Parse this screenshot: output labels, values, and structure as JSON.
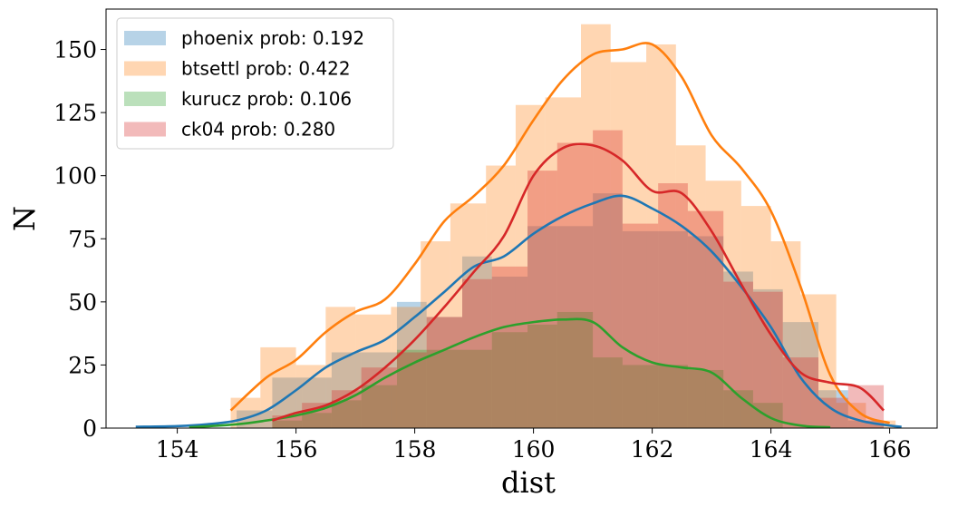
{
  "chart_data": {
    "type": "histogram+kde",
    "xlabel": "dist",
    "ylabel": "N",
    "xlim": [
      152.8,
      166.8
    ],
    "ylim": [
      0,
      166
    ],
    "xticks": [
      154,
      156,
      158,
      160,
      162,
      164,
      166
    ],
    "yticks": [
      0,
      25,
      50,
      75,
      100,
      125,
      150
    ],
    "legend_position": "top-left",
    "grid": false,
    "series": [
      {
        "name": "phoenix prob: 0.192",
        "color": "#1f77b4",
        "bins": [
          [
            155.0,
            155.6,
            7
          ],
          [
            155.6,
            156.1,
            20
          ],
          [
            156.1,
            156.6,
            20
          ],
          [
            156.6,
            157.1,
            30
          ],
          [
            157.1,
            157.7,
            30
          ],
          [
            157.7,
            158.2,
            50
          ],
          [
            158.2,
            158.8,
            44
          ],
          [
            158.8,
            159.3,
            68
          ],
          [
            159.3,
            159.9,
            60
          ],
          [
            159.9,
            160.4,
            80
          ],
          [
            160.4,
            161.0,
            80
          ],
          [
            161.0,
            161.5,
            93
          ],
          [
            161.5,
            162.1,
            78
          ],
          [
            162.1,
            162.6,
            78
          ],
          [
            162.6,
            163.2,
            76
          ],
          [
            163.2,
            163.7,
            62
          ],
          [
            163.7,
            164.2,
            55
          ],
          [
            164.2,
            164.8,
            42
          ],
          [
            164.8,
            165.3,
            15
          ],
          [
            165.3,
            165.9,
            3
          ]
        ],
        "kde_x": [
          153.3,
          154.0,
          154.5,
          155.0,
          155.5,
          156.0,
          156.5,
          157.0,
          157.5,
          158.0,
          158.5,
          159.0,
          159.5,
          160.0,
          160.5,
          161.0,
          161.5,
          162.0,
          162.5,
          163.0,
          163.5,
          164.0,
          164.5,
          165.0,
          165.5,
          166.0,
          166.2
        ],
        "kde_y": [
          0.5,
          0.8,
          1.5,
          3,
          7,
          15,
          24,
          30,
          35,
          44,
          54,
          64,
          68,
          77,
          84,
          89,
          92,
          87,
          80,
          70,
          56,
          40,
          20,
          8,
          3,
          1,
          0.5
        ]
      },
      {
        "name": "btsettl prob: 0.422",
        "color": "#ff7f0e",
        "bins": [
          [
            154.9,
            155.4,
            12
          ],
          [
            155.4,
            156.0,
            32
          ],
          [
            156.0,
            156.5,
            25
          ],
          [
            156.5,
            157.0,
            48
          ],
          [
            157.0,
            157.6,
            45
          ],
          [
            157.6,
            158.1,
            48
          ],
          [
            158.1,
            158.6,
            74
          ],
          [
            158.6,
            159.2,
            89
          ],
          [
            159.2,
            159.7,
            104
          ],
          [
            159.7,
            160.2,
            128
          ],
          [
            160.2,
            160.8,
            131
          ],
          [
            160.8,
            161.3,
            160
          ],
          [
            161.3,
            161.9,
            145
          ],
          [
            161.9,
            162.4,
            152
          ],
          [
            162.4,
            162.9,
            112
          ],
          [
            162.9,
            163.5,
            98
          ],
          [
            163.5,
            164.0,
            88
          ],
          [
            164.0,
            164.5,
            74
          ],
          [
            164.5,
            165.1,
            53
          ],
          [
            165.1,
            165.6,
            10
          ],
          [
            165.6,
            166.1,
            3
          ]
        ],
        "kde_x": [
          154.9,
          155.5,
          156.0,
          156.5,
          157.0,
          157.5,
          158.0,
          158.5,
          159.0,
          159.5,
          160.0,
          160.5,
          161.0,
          161.5,
          162.0,
          162.5,
          163.0,
          163.5,
          164.0,
          164.5,
          165.0,
          165.5,
          166.0
        ],
        "kde_y": [
          7,
          20,
          27,
          38,
          46,
          51,
          65,
          82,
          92,
          104,
          122,
          138,
          148,
          150,
          152,
          139,
          116,
          103,
          86,
          56,
          21,
          6,
          2
        ]
      },
      {
        "name": "kurucz prob: 0.106",
        "color": "#2ca02c",
        "bins": [
          [
            155.6,
            156.1,
            3
          ],
          [
            156.1,
            156.6,
            6
          ],
          [
            156.6,
            157.1,
            11
          ],
          [
            157.1,
            157.7,
            17
          ],
          [
            157.7,
            158.2,
            31
          ],
          [
            158.2,
            158.8,
            31
          ],
          [
            158.8,
            159.3,
            31
          ],
          [
            159.3,
            159.9,
            38
          ],
          [
            159.9,
            160.4,
            41
          ],
          [
            160.4,
            161.0,
            46
          ],
          [
            161.0,
            161.5,
            28
          ],
          [
            161.5,
            162.1,
            25
          ],
          [
            162.1,
            162.6,
            25
          ],
          [
            162.6,
            163.2,
            23
          ],
          [
            163.2,
            163.7,
            15
          ],
          [
            163.7,
            164.2,
            10
          ]
        ],
        "kde_x": [
          154.2,
          155.0,
          155.5,
          156.0,
          156.5,
          157.0,
          157.5,
          158.0,
          158.5,
          159.0,
          159.5,
          160.0,
          160.5,
          161.0,
          161.5,
          162.0,
          162.5,
          163.0,
          163.5,
          164.0,
          164.5,
          165.0
        ],
        "kde_y": [
          0.3,
          1.5,
          3,
          5,
          8,
          13,
          20,
          26,
          31,
          36,
          40,
          42,
          43,
          42,
          32,
          26,
          24,
          22,
          12,
          4,
          1,
          0.3
        ]
      },
      {
        "name": "ck04 prob: 0.280",
        "color": "#d62728",
        "bins": [
          [
            155.6,
            156.1,
            5
          ],
          [
            156.1,
            156.6,
            10
          ],
          [
            156.6,
            157.1,
            15
          ],
          [
            157.1,
            157.7,
            24
          ],
          [
            157.7,
            158.2,
            30
          ],
          [
            158.2,
            158.8,
            44
          ],
          [
            158.8,
            159.3,
            59
          ],
          [
            159.3,
            159.9,
            64
          ],
          [
            159.9,
            160.4,
            102
          ],
          [
            160.4,
            161.0,
            113
          ],
          [
            161.0,
            161.5,
            118
          ],
          [
            161.5,
            162.1,
            81
          ],
          [
            162.1,
            162.6,
            97
          ],
          [
            162.6,
            163.2,
            86
          ],
          [
            163.2,
            163.7,
            58
          ],
          [
            163.7,
            164.2,
            54
          ],
          [
            164.2,
            164.8,
            28
          ],
          [
            164.8,
            165.3,
            12
          ],
          [
            165.3,
            165.9,
            17
          ]
        ],
        "kde_x": [
          155.6,
          156.0,
          156.5,
          157.0,
          157.5,
          158.0,
          158.5,
          159.0,
          159.5,
          160.0,
          160.5,
          161.0,
          161.5,
          162.0,
          162.5,
          163.0,
          163.5,
          164.0,
          164.5,
          165.0,
          165.5,
          165.9
        ],
        "kde_y": [
          3,
          6,
          9,
          15,
          24,
          35,
          48,
          62,
          76,
          100,
          111,
          112,
          106,
          94,
          93,
          78,
          57,
          37,
          22,
          18,
          16,
          7
        ]
      }
    ]
  }
}
